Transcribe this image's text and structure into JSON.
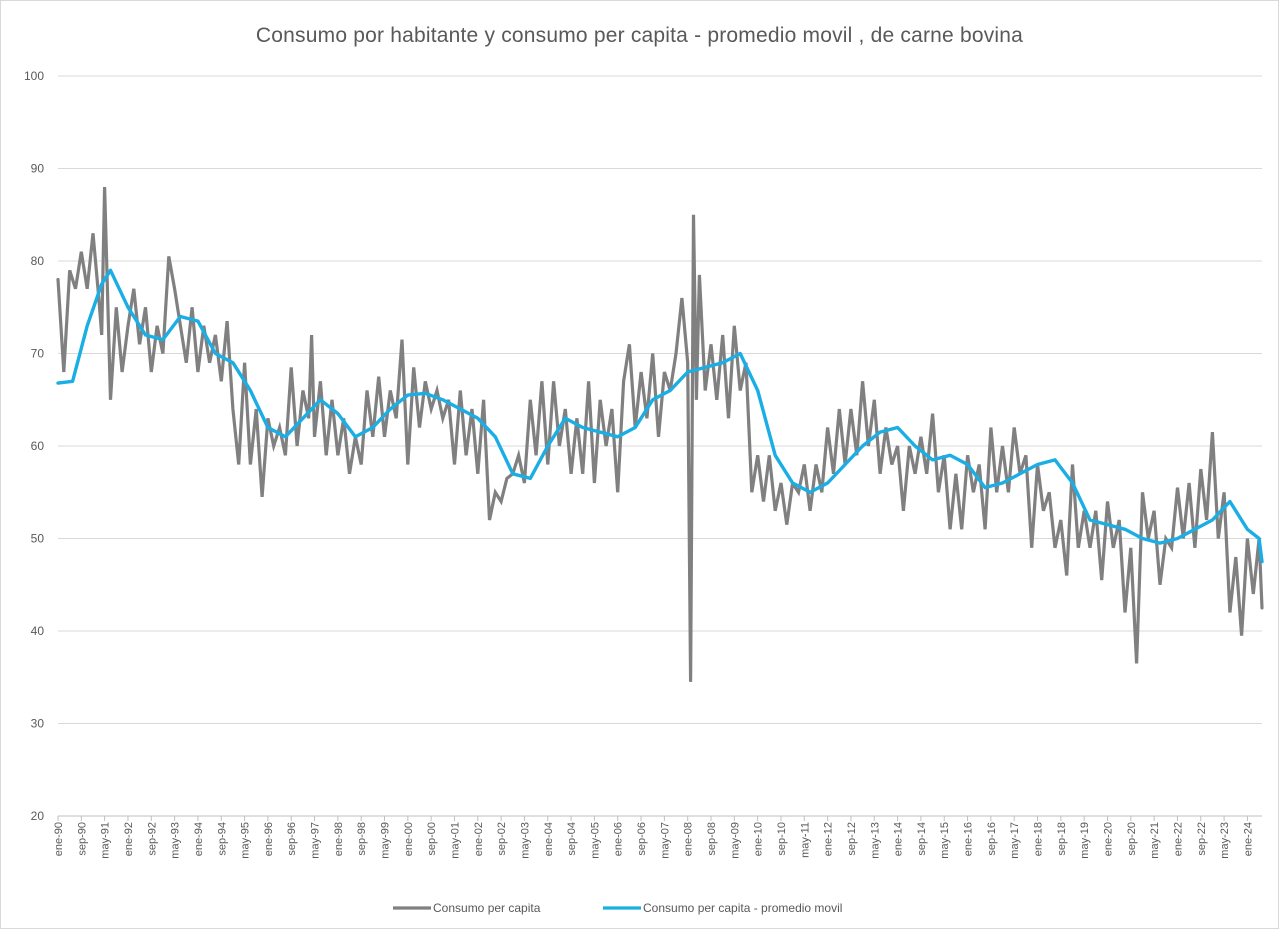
{
  "chart_data": {
    "type": "line",
    "title": "Consumo por habitante y consumo per capita - promedio movil , de carne bovina",
    "xlabel": "",
    "ylabel": "",
    "ylim": [
      20,
      100
    ],
    "yticks": [
      20,
      30,
      40,
      50,
      60,
      70,
      80,
      90,
      100
    ],
    "grid": true,
    "legend_position": "bottom",
    "x_start": "ene-90",
    "x_end": "jun-24",
    "x_tick_labels": [
      "ene-90",
      "sep-90",
      "may-91",
      "ene-92",
      "sep-92",
      "may-93",
      "ene-94",
      "sep-94",
      "may-95",
      "ene-96",
      "sep-96",
      "may-97",
      "ene-98",
      "sep-98",
      "may-99",
      "ene-00",
      "sep-00",
      "may-01",
      "ene-02",
      "sep-02",
      "may-03",
      "ene-04",
      "sep-04",
      "may-05",
      "ene-06",
      "sep-06",
      "may-07",
      "ene-08",
      "sep-08",
      "may-09",
      "ene-10",
      "sep-10",
      "may-11",
      "ene-12",
      "sep-12",
      "may-13",
      "ene-14",
      "sep-14",
      "may-15",
      "ene-16",
      "sep-16",
      "may-17",
      "ene-18",
      "sep-18",
      "may-19",
      "ene-20",
      "sep-20",
      "may-21",
      "ene-22",
      "sep-22",
      "may-23",
      "ene-24"
    ],
    "series": [
      {
        "name": "Consumo per capita",
        "color": "#808080",
        "anchors": [
          [
            "ene-90",
            78
          ],
          [
            "mar-90",
            68
          ],
          [
            "may-90",
            79
          ],
          [
            "jul-90",
            77
          ],
          [
            "sep-90",
            81
          ],
          [
            "nov-90",
            77
          ],
          [
            "ene-91",
            83
          ],
          [
            "mar-91",
            76
          ],
          [
            "abr-91",
            72
          ],
          [
            "may-91",
            88
          ],
          [
            "jul-91",
            65
          ],
          [
            "sep-91",
            75
          ],
          [
            "nov-91",
            68
          ],
          [
            "ene-92",
            73
          ],
          [
            "mar-92",
            77
          ],
          [
            "may-92",
            71
          ],
          [
            "jul-92",
            75
          ],
          [
            "sep-92",
            68
          ],
          [
            "nov-92",
            73
          ],
          [
            "ene-93",
            70
          ],
          [
            "mar-93",
            80.5
          ],
          [
            "may-93",
            77
          ],
          [
            "jul-93",
            73
          ],
          [
            "sep-93",
            69
          ],
          [
            "nov-93",
            75
          ],
          [
            "ene-94",
            68
          ],
          [
            "mar-94",
            73
          ],
          [
            "may-94",
            69
          ],
          [
            "jul-94",
            72
          ],
          [
            "sep-94",
            67
          ],
          [
            "nov-94",
            73.5
          ],
          [
            "ene-95",
            64
          ],
          [
            "mar-95",
            58
          ],
          [
            "may-95",
            69
          ],
          [
            "jul-95",
            58
          ],
          [
            "sep-95",
            64
          ],
          [
            "nov-95",
            54.5
          ],
          [
            "ene-96",
            63
          ],
          [
            "mar-96",
            60
          ],
          [
            "may-96",
            62
          ],
          [
            "jul-96",
            59
          ],
          [
            "sep-96",
            68.5
          ],
          [
            "nov-96",
            60
          ],
          [
            "ene-97",
            66
          ],
          [
            "mar-97",
            63
          ],
          [
            "abr-97",
            72
          ],
          [
            "may-97",
            61
          ],
          [
            "jul-97",
            67
          ],
          [
            "sep-97",
            59
          ],
          [
            "nov-97",
            65
          ],
          [
            "ene-98",
            59
          ],
          [
            "mar-98",
            63
          ],
          [
            "may-98",
            57
          ],
          [
            "jul-98",
            61
          ],
          [
            "sep-98",
            58
          ],
          [
            "nov-98",
            66
          ],
          [
            "ene-99",
            61
          ],
          [
            "mar-99",
            67.5
          ],
          [
            "may-99",
            61
          ],
          [
            "jul-99",
            66
          ],
          [
            "sep-99",
            63
          ],
          [
            "nov-99",
            71.5
          ],
          [
            "ene-00",
            58
          ],
          [
            "mar-00",
            68.5
          ],
          [
            "may-00",
            62
          ],
          [
            "jul-00",
            67
          ],
          [
            "sep-00",
            64
          ],
          [
            "nov-00",
            66
          ],
          [
            "ene-01",
            63
          ],
          [
            "mar-01",
            65
          ],
          [
            "may-01",
            58
          ],
          [
            "jul-01",
            66
          ],
          [
            "sep-01",
            59
          ],
          [
            "nov-01",
            64
          ],
          [
            "ene-02",
            57
          ],
          [
            "mar-02",
            65
          ],
          [
            "may-02",
            52
          ],
          [
            "jul-02",
            55
          ],
          [
            "sep-02",
            54
          ],
          [
            "nov-02",
            56.5
          ],
          [
            "ene-03",
            57
          ],
          [
            "mar-03",
            59
          ],
          [
            "may-03",
            56
          ],
          [
            "jul-03",
            65
          ],
          [
            "sep-03",
            59
          ],
          [
            "nov-03",
            67
          ],
          [
            "ene-04",
            58
          ],
          [
            "mar-04",
            67
          ],
          [
            "may-04",
            60
          ],
          [
            "jul-04",
            64
          ],
          [
            "sep-04",
            57
          ],
          [
            "nov-04",
            63
          ],
          [
            "ene-05",
            57
          ],
          [
            "mar-05",
            67
          ],
          [
            "may-05",
            56
          ],
          [
            "jul-05",
            65
          ],
          [
            "sep-05",
            60
          ],
          [
            "nov-05",
            64
          ],
          [
            "ene-06",
            55
          ],
          [
            "mar-06",
            67
          ],
          [
            "may-06",
            71
          ],
          [
            "jul-06",
            62
          ],
          [
            "sep-06",
            68
          ],
          [
            "nov-06",
            63
          ],
          [
            "ene-07",
            70
          ],
          [
            "mar-07",
            61
          ],
          [
            "may-07",
            68
          ],
          [
            "jul-07",
            66
          ],
          [
            "sep-07",
            70
          ],
          [
            "nov-07",
            76
          ],
          [
            "ene-08",
            69
          ],
          [
            "feb-08",
            34.5
          ],
          [
            "mar-08",
            85
          ],
          [
            "abr-08",
            65
          ],
          [
            "may-08",
            78.5
          ],
          [
            "jul-08",
            66
          ],
          [
            "sep-08",
            71
          ],
          [
            "nov-08",
            65
          ],
          [
            "ene-09",
            72
          ],
          [
            "mar-09",
            63
          ],
          [
            "may-09",
            73
          ],
          [
            "jul-09",
            66
          ],
          [
            "sep-09",
            69
          ],
          [
            "nov-09",
            55
          ],
          [
            "ene-10",
            59
          ],
          [
            "mar-10",
            54
          ],
          [
            "may-10",
            59
          ],
          [
            "jul-10",
            53
          ],
          [
            "sep-10",
            56
          ],
          [
            "nov-10",
            51.5
          ],
          [
            "ene-11",
            56
          ],
          [
            "mar-11",
            55
          ],
          [
            "may-11",
            58
          ],
          [
            "jul-11",
            53
          ],
          [
            "sep-11",
            58
          ],
          [
            "nov-11",
            55
          ],
          [
            "ene-12",
            62
          ],
          [
            "mar-12",
            57
          ],
          [
            "may-12",
            64
          ],
          [
            "jul-12",
            58
          ],
          [
            "sep-12",
            64
          ],
          [
            "nov-12",
            59
          ],
          [
            "ene-13",
            67
          ],
          [
            "mar-13",
            60
          ],
          [
            "may-13",
            65
          ],
          [
            "jul-13",
            57
          ],
          [
            "sep-13",
            62
          ],
          [
            "nov-13",
            58
          ],
          [
            "ene-14",
            60
          ],
          [
            "mar-14",
            53
          ],
          [
            "may-14",
            60
          ],
          [
            "jul-14",
            57
          ],
          [
            "sep-14",
            61
          ],
          [
            "nov-14",
            57
          ],
          [
            "ene-15",
            63.5
          ],
          [
            "mar-15",
            55
          ],
          [
            "may-15",
            59
          ],
          [
            "jul-15",
            51
          ],
          [
            "sep-15",
            57
          ],
          [
            "nov-15",
            51
          ],
          [
            "ene-16",
            59
          ],
          [
            "mar-16",
            55
          ],
          [
            "may-16",
            58
          ],
          [
            "jul-16",
            51
          ],
          [
            "sep-16",
            62
          ],
          [
            "nov-16",
            55
          ],
          [
            "ene-17",
            60
          ],
          [
            "mar-17",
            55
          ],
          [
            "may-17",
            62
          ],
          [
            "jul-17",
            57
          ],
          [
            "sep-17",
            59
          ],
          [
            "nov-17",
            49
          ],
          [
            "ene-18",
            58
          ],
          [
            "mar-18",
            53
          ],
          [
            "may-18",
            55
          ],
          [
            "jul-18",
            49
          ],
          [
            "sep-18",
            52
          ],
          [
            "nov-18",
            46
          ],
          [
            "ene-19",
            58
          ],
          [
            "mar-19",
            49
          ],
          [
            "may-19",
            53
          ],
          [
            "jul-19",
            49
          ],
          [
            "sep-19",
            53
          ],
          [
            "nov-19",
            45.5
          ],
          [
            "ene-20",
            54
          ],
          [
            "mar-20",
            49
          ],
          [
            "may-20",
            52
          ],
          [
            "jul-20",
            42
          ],
          [
            "sep-20",
            49
          ],
          [
            "nov-20",
            36.5
          ],
          [
            "ene-21",
            55
          ],
          [
            "mar-21",
            50
          ],
          [
            "may-21",
            53
          ],
          [
            "jul-21",
            45
          ],
          [
            "sep-21",
            50
          ],
          [
            "nov-21",
            49
          ],
          [
            "ene-22",
            55.5
          ],
          [
            "mar-22",
            50
          ],
          [
            "may-22",
            56
          ],
          [
            "jul-22",
            49
          ],
          [
            "sep-22",
            57.5
          ],
          [
            "nov-22",
            52
          ],
          [
            "ene-23",
            61.5
          ],
          [
            "mar-23",
            50
          ],
          [
            "may-23",
            55
          ],
          [
            "jul-23",
            42
          ],
          [
            "sep-23",
            48
          ],
          [
            "nov-23",
            39.5
          ],
          [
            "ene-24",
            50
          ],
          [
            "mar-24",
            44
          ],
          [
            "may-24",
            50
          ],
          [
            "jun-24",
            42.5
          ]
        ]
      },
      {
        "name": "Consumo per capita - promedio movil",
        "color": "#1aaee5",
        "anchors": [
          [
            "ene-90",
            66.8
          ],
          [
            "jun-90",
            67
          ],
          [
            "nov-90",
            73
          ],
          [
            "abr-91",
            77.5
          ],
          [
            "jul-91",
            79
          ],
          [
            "ene-92",
            75
          ],
          [
            "jul-92",
            72
          ],
          [
            "ene-93",
            71.5
          ],
          [
            "jul-93",
            74
          ],
          [
            "ene-94",
            73.5
          ],
          [
            "jul-94",
            70
          ],
          [
            "ene-95",
            69
          ],
          [
            "jul-95",
            66
          ],
          [
            "ene-96",
            62
          ],
          [
            "jul-96",
            61
          ],
          [
            "ene-97",
            63
          ],
          [
            "jul-97",
            65
          ],
          [
            "ene-98",
            63.5
          ],
          [
            "jul-98",
            61
          ],
          [
            "ene-99",
            62
          ],
          [
            "jul-99",
            64
          ],
          [
            "ene-00",
            65.5
          ],
          [
            "jul-00",
            65.7
          ],
          [
            "ene-01",
            65
          ],
          [
            "jul-01",
            64
          ],
          [
            "ene-02",
            63
          ],
          [
            "jul-02",
            61
          ],
          [
            "ene-03",
            57
          ],
          [
            "jul-03",
            56.5
          ],
          [
            "ene-04",
            60
          ],
          [
            "jul-04",
            63
          ],
          [
            "ene-05",
            62
          ],
          [
            "jul-05",
            61.5
          ],
          [
            "ene-06",
            61
          ],
          [
            "jul-06",
            62
          ],
          [
            "ene-07",
            65
          ],
          [
            "jul-07",
            66
          ],
          [
            "ene-08",
            68
          ],
          [
            "jul-08",
            68.5
          ],
          [
            "ene-09",
            69
          ],
          [
            "jul-09",
            70
          ],
          [
            "ene-10",
            66
          ],
          [
            "jul-10",
            59
          ],
          [
            "ene-11",
            56
          ],
          [
            "jul-11",
            55
          ],
          [
            "ene-12",
            56
          ],
          [
            "jul-12",
            58
          ],
          [
            "ene-13",
            60
          ],
          [
            "jul-13",
            61.5
          ],
          [
            "ene-14",
            62
          ],
          [
            "jul-14",
            60
          ],
          [
            "ene-15",
            58.5
          ],
          [
            "jul-15",
            59
          ],
          [
            "ene-16",
            58
          ],
          [
            "jul-16",
            55.5
          ],
          [
            "ene-17",
            56
          ],
          [
            "jul-17",
            57
          ],
          [
            "ene-18",
            58
          ],
          [
            "jul-18",
            58.5
          ],
          [
            "ene-19",
            56
          ],
          [
            "jul-19",
            52
          ],
          [
            "ene-20",
            51.5
          ],
          [
            "jul-20",
            51
          ],
          [
            "ene-21",
            50
          ],
          [
            "jul-21",
            49.5
          ],
          [
            "ene-22",
            50
          ],
          [
            "jul-22",
            51
          ],
          [
            "ene-23",
            52
          ],
          [
            "jul-23",
            54
          ],
          [
            "ene-24",
            51
          ],
          [
            "may-24",
            50
          ],
          [
            "jun-24",
            47.5
          ]
        ]
      }
    ]
  }
}
